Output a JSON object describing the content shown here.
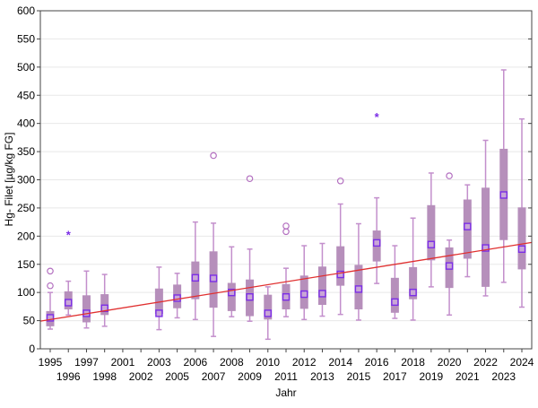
{
  "chart_data": {
    "type": "box",
    "title": "",
    "xlabel": "Jahr",
    "ylabel": "Hg- Filet [µg/kg FG]",
    "ylim": [
      0,
      600
    ],
    "yticks": [
      0,
      50,
      100,
      150,
      200,
      250,
      300,
      350,
      400,
      450,
      500,
      550,
      600
    ],
    "grid": true,
    "colors": {
      "box": "#b68fbb",
      "whisker": "#c38fcc",
      "center_marker": "#7b2ee6",
      "outlier": "#b36fc0",
      "extreme": "#7b2ee6",
      "trend": "#e03030"
    },
    "categories": [
      "1995",
      "1996",
      "1997",
      "1998",
      "2001",
      "2002",
      "2003",
      "2005",
      "2006",
      "2007",
      "2008",
      "2009",
      "2010",
      "2011",
      "2012",
      "2013",
      "2014",
      "2015",
      "2016",
      "2017",
      "2018",
      "2019",
      "2020",
      "2021",
      "2022",
      "2023",
      "2024"
    ],
    "boxes": [
      {
        "median": 55,
        "q1": 40,
        "q3": 67,
        "min": 35,
        "max": 100,
        "outliers": [
          112,
          138
        ],
        "extremes": []
      },
      {
        "median": 82,
        "q1": 70,
        "q3": 102,
        "min": 60,
        "max": 120,
        "outliers": [],
        "extremes": [
          203
        ]
      },
      {
        "median": 63,
        "q1": 47,
        "q3": 95,
        "min": 37,
        "max": 138,
        "outliers": [],
        "extremes": []
      },
      {
        "median": 72,
        "q1": 60,
        "q3": 97,
        "min": 40,
        "max": 132,
        "outliers": [],
        "extremes": []
      },
      null,
      null,
      {
        "median": 63,
        "q1": 62,
        "q3": 107,
        "min": 34,
        "max": 145,
        "outliers": [],
        "extremes": []
      },
      {
        "median": 90,
        "q1": 72,
        "q3": 114,
        "min": 55,
        "max": 134,
        "outliers": [],
        "extremes": []
      },
      {
        "median": 126,
        "q1": 88,
        "q3": 155,
        "min": 52,
        "max": 225,
        "outliers": [],
        "extremes": []
      },
      {
        "median": 125,
        "q1": 73,
        "q3": 173,
        "min": 22,
        "max": 223,
        "outliers": [
          343
        ],
        "extremes": []
      },
      {
        "median": 100,
        "q1": 67,
        "q3": 117,
        "min": 57,
        "max": 181,
        "outliers": [],
        "extremes": []
      },
      {
        "median": 92,
        "q1": 58,
        "q3": 123,
        "min": 49,
        "max": 177,
        "outliers": [
          302
        ],
        "extremes": []
      },
      {
        "median": 63,
        "q1": 52,
        "q3": 96,
        "min": 17,
        "max": 110,
        "outliers": [],
        "extremes": []
      },
      {
        "median": 92,
        "q1": 70,
        "q3": 115,
        "min": 57,
        "max": 143,
        "outliers": [
          208,
          218
        ],
        "extremes": []
      },
      {
        "median": 97,
        "q1": 71,
        "q3": 130,
        "min": 52,
        "max": 183,
        "outliers": [],
        "extremes": []
      },
      {
        "median": 98,
        "q1": 78,
        "q3": 146,
        "min": 58,
        "max": 187,
        "outliers": [],
        "extremes": []
      },
      {
        "median": 132,
        "q1": 112,
        "q3": 182,
        "min": 61,
        "max": 257,
        "outliers": [
          298
        ],
        "extremes": []
      },
      {
        "median": 106,
        "q1": 70,
        "q3": 149,
        "min": 51,
        "max": 222,
        "outliers": [],
        "extremes": []
      },
      {
        "median": 188,
        "q1": 155,
        "q3": 210,
        "min": 116,
        "max": 268,
        "outliers": [],
        "extremes": [
          412
        ]
      },
      {
        "median": 83,
        "q1": 64,
        "q3": 126,
        "min": 54,
        "max": 183,
        "outliers": [],
        "extremes": []
      },
      {
        "median": 100,
        "q1": 88,
        "q3": 145,
        "min": 51,
        "max": 232,
        "outliers": [],
        "extremes": []
      },
      {
        "median": 185,
        "q1": 157,
        "q3": 255,
        "min": 110,
        "max": 312,
        "outliers": [],
        "extremes": []
      },
      {
        "median": 147,
        "q1": 108,
        "q3": 180,
        "min": 60,
        "max": 193,
        "outliers": [
          307
        ],
        "extremes": []
      },
      {
        "median": 217,
        "q1": 160,
        "q3": 265,
        "min": 128,
        "max": 291,
        "outliers": [],
        "extremes": []
      },
      {
        "median": 179,
        "q1": 110,
        "q3": 286,
        "min": 94,
        "max": 370,
        "outliers": [],
        "extremes": []
      },
      {
        "median": 273,
        "q1": 193,
        "q3": 355,
        "min": 118,
        "max": 495,
        "outliers": [],
        "extremes": []
      },
      {
        "median": 177,
        "q1": 141,
        "q3": 251,
        "min": 74,
        "max": 408,
        "outliers": [],
        "extremes": []
      }
    ],
    "trend_line": {
      "start": {
        "x": "1995",
        "y": 52
      },
      "end": {
        "x": "2024",
        "y": 186
      }
    }
  }
}
